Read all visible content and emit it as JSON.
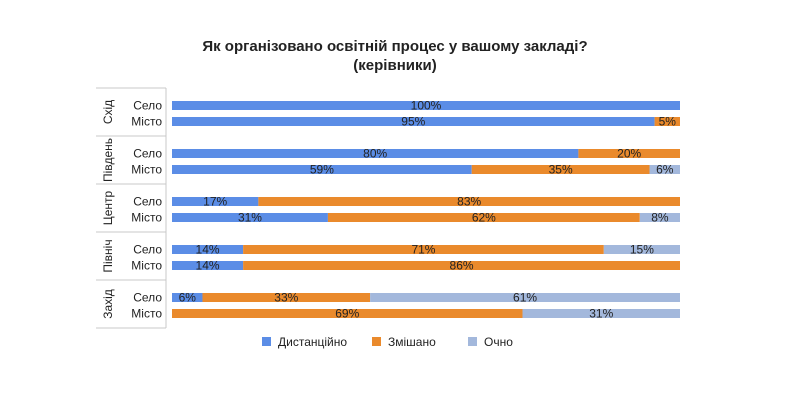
{
  "chart_data": {
    "type": "bar",
    "orientation": "horizontal",
    "stacked": "percent",
    "title": "Як організовано освітній процес у вашому закладі?",
    "subtitle": "(керівники)",
    "series": [
      {
        "name": "Дистанційно",
        "color": "#5b8de6"
      },
      {
        "name": "Змішано",
        "color": "#ea8a2c"
      },
      {
        "name": "Очно",
        "color": "#a3b8dc"
      }
    ],
    "legend": "bottom",
    "groups": [
      {
        "region": "Схід",
        "rows": [
          {
            "label": "Село",
            "values": [
              100,
              0,
              0
            ],
            "labels": [
              "100%",
              "",
              ""
            ]
          },
          {
            "label": "Місто",
            "values": [
              95,
              5,
              0
            ],
            "labels": [
              "95%",
              "5%",
              ""
            ]
          }
        ]
      },
      {
        "region": "Південь",
        "rows": [
          {
            "label": "Село",
            "values": [
              80,
              20,
              0
            ],
            "labels": [
              "80%",
              "20%",
              ""
            ]
          },
          {
            "label": "Місто",
            "values": [
              59,
              35,
              6
            ],
            "labels": [
              "59%",
              "35%",
              "6%"
            ]
          }
        ]
      },
      {
        "region": "Центр",
        "rows": [
          {
            "label": "Село",
            "values": [
              17,
              83,
              0
            ],
            "labels": [
              "17%",
              "83%",
              ""
            ]
          },
          {
            "label": "Місто",
            "values": [
              31,
              62,
              8
            ],
            "labels": [
              "31%",
              "62%",
              "8%"
            ]
          }
        ]
      },
      {
        "region": "Північ",
        "rows": [
          {
            "label": "Село",
            "values": [
              14,
              71,
              15
            ],
            "labels": [
              "14%",
              "71%",
              "15%"
            ]
          },
          {
            "label": "Місто",
            "values": [
              14,
              86,
              0
            ],
            "labels": [
              "14%",
              "86%",
              ""
            ]
          }
        ]
      },
      {
        "region": "Захід",
        "rows": [
          {
            "label": "Село",
            "values": [
              6,
              33,
              61
            ],
            "labels": [
              "6%",
              "33%",
              "61%"
            ]
          },
          {
            "label": "Місто",
            "values": [
              0,
              69,
              31
            ],
            "labels": [
              "",
              "69%",
              "31%"
            ]
          }
        ]
      }
    ]
  }
}
